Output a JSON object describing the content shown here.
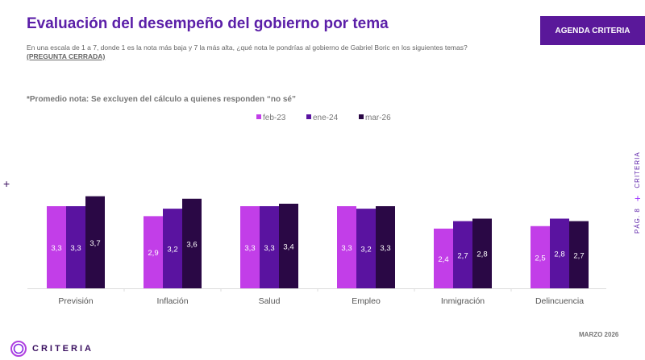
{
  "header": {
    "title": "Evaluación del desempeño del gobierno por tema",
    "subtitle": "En una escala de 1 a 7, donde 1 es la nota más baja y 7 la más alta, ¿qué nota le pondrías al gobierno de Gabriel Boric en los siguientes temas?",
    "subtitle_tag": "(PREGUNTA CERRADA)",
    "button": "AGENDA CRITERIA"
  },
  "note": "*Promedio nota: Se excluyen del cálculo a quienes responden “no sé”",
  "side": {
    "brand": "CRITERIA",
    "page": "PÁG. 8"
  },
  "footer": {
    "date": "MARZO 2026",
    "logo": "CRITERIA"
  },
  "chart_data": {
    "type": "bar",
    "categories": [
      "Previsión",
      "Inflación",
      "Salud",
      "Empleo",
      "Inmigración",
      "Delincuencia"
    ],
    "series": [
      {
        "name": "feb-23",
        "color": "#c23ee8",
        "values": [
          3.3,
          2.9,
          3.3,
          3.3,
          2.4,
          2.5
        ]
      },
      {
        "name": "ene-24",
        "color": "#5a13a0",
        "values": [
          3.3,
          3.2,
          3.3,
          3.2,
          2.7,
          2.8
        ]
      },
      {
        "name": "mar-26",
        "color": "#2a0845",
        "values": [
          3.7,
          3.6,
          3.4,
          3.3,
          2.8,
          2.7
        ]
      }
    ],
    "legend": "top-center",
    "grid": false,
    "ylim": [
      0,
      7
    ]
  }
}
